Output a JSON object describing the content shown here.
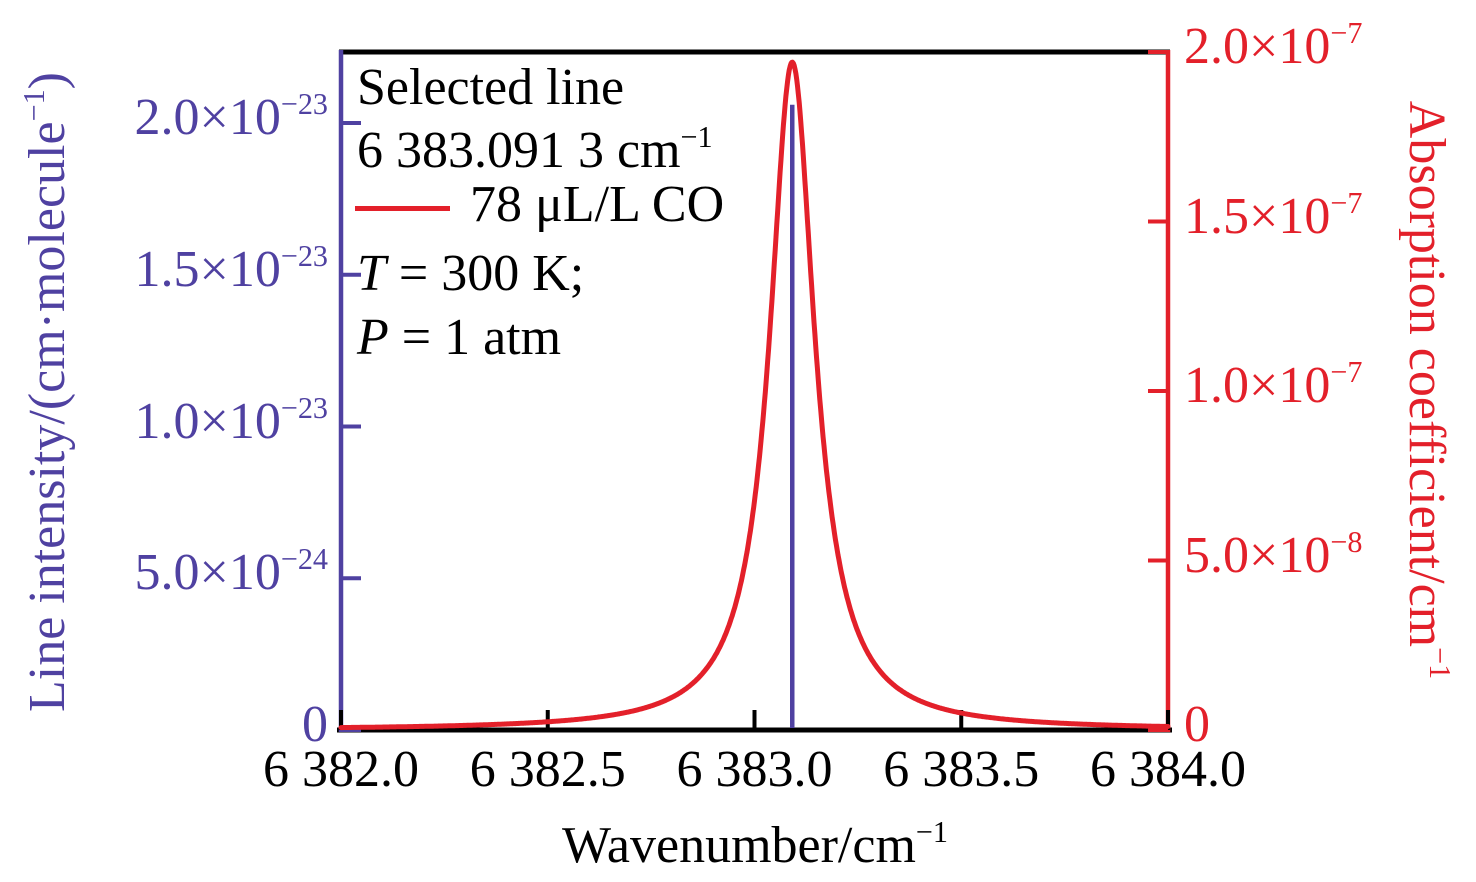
{
  "colors": {
    "left_axis": "#4f41a1",
    "right_axis": "#e3202a",
    "frame": "#000000",
    "text": "#000000"
  },
  "chart_data": {
    "type": "line",
    "title": "",
    "grid": false,
    "x": {
      "label_parts": [
        {
          "t": "Wavenumber/cm"
        },
        {
          "sup": "−1"
        }
      ],
      "range": [
        6382.0,
        6384.0
      ],
      "tick_values": [
        6382.0,
        6382.5,
        6383.0,
        6383.5,
        6384.0
      ],
      "tick_labels": [
        "6 382.0",
        "6 382.5",
        "6 383.0",
        "6 383.5",
        "6 384.0"
      ]
    },
    "y_left": {
      "label_parts": [
        {
          "t": "Line intensity/(cm·molecule"
        },
        {
          "sup": "−1"
        },
        {
          "t": ")"
        }
      ],
      "color": "#4f41a1",
      "range": [
        0,
        2.23e-23
      ],
      "tick_values": [
        0,
        5e-24,
        1e-23,
        1.5e-23,
        2e-23
      ],
      "tick_label_parts": [
        [
          {
            "t": "0"
          }
        ],
        [
          {
            "t": "5.0×10"
          },
          {
            "sup": "−24"
          }
        ],
        [
          {
            "t": "1.0×10"
          },
          {
            "sup": "−23"
          }
        ],
        [
          {
            "t": "1.5×10"
          },
          {
            "sup": "−23"
          }
        ],
        [
          {
            "t": "2.0×10"
          },
          {
            "sup": "−23"
          }
        ]
      ]
    },
    "y_right": {
      "label_parts": [
        {
          "t": "Absorption coefficient/cm"
        },
        {
          "sup": "−1"
        }
      ],
      "color": "#e3202a",
      "range": [
        0,
        2e-07
      ],
      "tick_values": [
        0,
        5e-08,
        1e-07,
        1.5e-07,
        2e-07
      ],
      "tick_label_parts": [
        [
          {
            "t": "0"
          }
        ],
        [
          {
            "t": "5.0×10"
          },
          {
            "sup": "−8"
          }
        ],
        [
          {
            "t": "1.0×10"
          },
          {
            "sup": "−7"
          }
        ],
        [
          {
            "t": "1.5×10"
          },
          {
            "sup": "−7"
          }
        ],
        [
          {
            "t": "2.0×10"
          },
          {
            "sup": "−7"
          }
        ]
      ]
    },
    "series": [
      {
        "name": "78 μL/L CO",
        "type": "lorentzian",
        "axis": "right",
        "color": "#e3202a",
        "center_cm1": 6383.0913,
        "hwhm_cm1": 0.066,
        "peak": 1.97e-07
      },
      {
        "name": "Selected line intensity",
        "type": "stick",
        "axis": "left",
        "color": "#4f41a1",
        "position_cm1": 6383.0913,
        "height": 2.06e-23
      }
    ],
    "annotations": {
      "line1": "Selected line",
      "line2_parts": [
        {
          "t": "6 383.091 3 cm"
        },
        {
          "sup": "−1"
        }
      ],
      "legend": {
        "label": "78 μL/L CO",
        "line_color": "#e3202a"
      },
      "conditions": [
        {
          "parts": [
            {
              "i": "T"
            },
            {
              "t": " = 300 K;"
            }
          ]
        },
        {
          "parts": [
            {
              "i": "P"
            },
            {
              "t": " = 1 atm"
            }
          ]
        }
      ]
    }
  }
}
